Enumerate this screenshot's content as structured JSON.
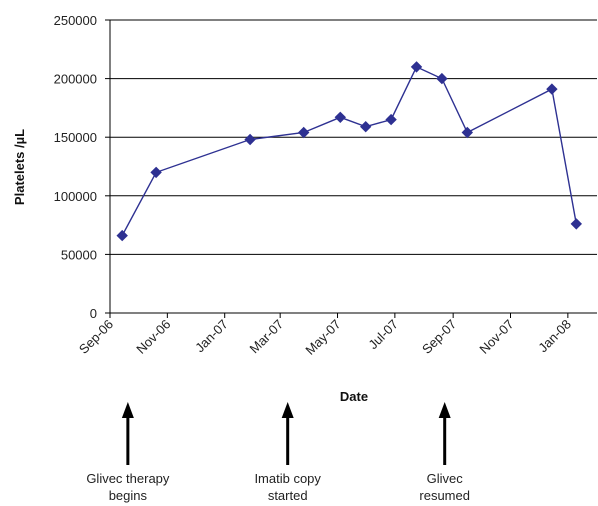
{
  "chart_data": {
    "type": "line",
    "xlabel": "Date",
    "ylabel": "Platelets /µL",
    "ylim": [
      0,
      250000
    ],
    "yticks": [
      0,
      50000,
      100000,
      150000,
      200000,
      250000
    ],
    "ytick_labels": [
      "0",
      "50000",
      "100000",
      "150000",
      "200000",
      "250000"
    ],
    "xlim": [
      "2006-09-01",
      "2008-02-01"
    ],
    "xticks": [
      "2006-09-01",
      "2006-11-01",
      "2007-01-01",
      "2007-03-01",
      "2007-05-01",
      "2007-07-01",
      "2007-09-01",
      "2007-11-01",
      "2008-01-01"
    ],
    "xtick_labels": [
      "Sep-06",
      "Nov-06",
      "Jan-07",
      "Mar-07",
      "May-07",
      "Jul-07",
      "Sep-07",
      "Nov-07",
      "Jan-08"
    ],
    "grid": "horizontal",
    "series": [
      {
        "color": "#2e3192",
        "marker": "diamond",
        "points": [
          {
            "x": "2006-09-14",
            "y": 66000
          },
          {
            "x": "2006-10-20",
            "y": 120000
          },
          {
            "x": "2007-01-28",
            "y": 148000
          },
          {
            "x": "2007-03-26",
            "y": 154000
          },
          {
            "x": "2007-05-04",
            "y": 167000
          },
          {
            "x": "2007-05-31",
            "y": 159000
          },
          {
            "x": "2007-06-27",
            "y": 165000
          },
          {
            "x": "2007-07-24",
            "y": 210000
          },
          {
            "x": "2007-08-20",
            "y": 200000
          },
          {
            "x": "2007-09-16",
            "y": 154000
          },
          {
            "x": "2007-12-15",
            "y": 191000
          },
          {
            "x": "2008-01-10",
            "y": 76000
          }
        ]
      }
    ],
    "annotations": [
      {
        "date": "2006-09-20",
        "lines": [
          "Glivec therapy",
          "begins"
        ]
      },
      {
        "date": "2007-03-09",
        "lines": [
          "Imatib copy",
          "started"
        ]
      },
      {
        "date": "2007-08-23",
        "lines": [
          "Glivec",
          "resumed"
        ]
      }
    ]
  }
}
